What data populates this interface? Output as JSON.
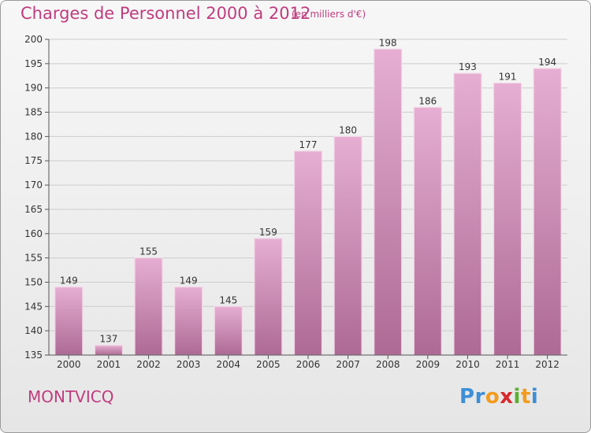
{
  "title": "Charges de Personnel 2000 à 2012",
  "subtitle": "(en milliers d'€)",
  "commune": "MONTVICQ",
  "logo": {
    "letters": [
      "P",
      "r",
      "o",
      "x",
      "i",
      "t",
      "i"
    ],
    "colors": [
      "#3d8fd6",
      "#3d8fd6",
      "#f39b1c",
      "#d7282d",
      "#5ab031",
      "#f39b1c",
      "#3d8fd6"
    ]
  },
  "colors": {
    "bar_top": "#e6aed2",
    "bar_bottom": "#ad6a94",
    "title": "#c03c7e",
    "axis": "#555555",
    "grid": "#cccccc"
  },
  "chart_data": {
    "type": "bar",
    "categories": [
      "2000",
      "2001",
      "2002",
      "2003",
      "2004",
      "2005",
      "2006",
      "2007",
      "2008",
      "2009",
      "2010",
      "2011",
      "2012"
    ],
    "values": [
      149,
      137,
      155,
      149,
      145,
      159,
      177,
      180,
      198,
      186,
      193,
      191,
      194
    ],
    "data_labels": [
      "149",
      "137",
      "155",
      "149",
      "145",
      "159",
      "177",
      "180",
      "198",
      "186",
      "193",
      "191",
      "194"
    ],
    "title": "Charges de Personnel 2000 à 2012",
    "unit": "(en milliers d'€)",
    "ylim": [
      135,
      200
    ],
    "yticks": [
      135,
      140,
      145,
      150,
      155,
      160,
      165,
      170,
      175,
      180,
      185,
      190,
      195,
      200
    ],
    "grid": true,
    "legend": "none"
  }
}
